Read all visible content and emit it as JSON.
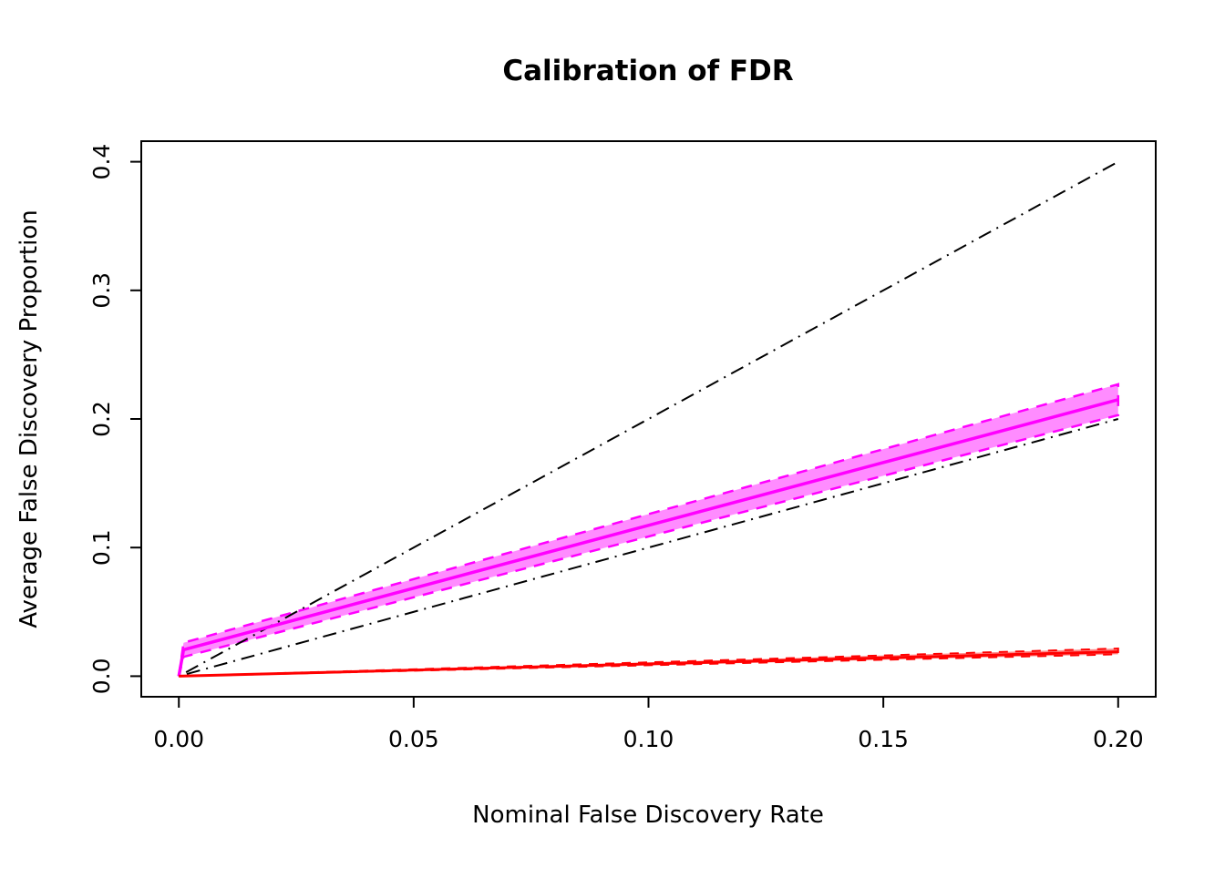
{
  "chart_data": {
    "type": "line",
    "title": "Calibration of FDR",
    "xlabel": "Nominal False Discovery Rate",
    "ylabel": "Average False Discovery Proportion",
    "xlim": [
      0,
      0.2
    ],
    "ylim": [
      0,
      0.4
    ],
    "grid": false,
    "legend": "none",
    "x_ticks": [
      {
        "value": 0.0,
        "label": "0.00"
      },
      {
        "value": 0.05,
        "label": "0.05"
      },
      {
        "value": 0.1,
        "label": "0.10"
      },
      {
        "value": 0.15,
        "label": "0.15"
      },
      {
        "value": 0.2,
        "label": "0.20"
      }
    ],
    "y_ticks": [
      {
        "value": 0.0,
        "label": "0.0"
      },
      {
        "value": 0.1,
        "label": "0.1"
      },
      {
        "value": 0.2,
        "label": "0.2"
      },
      {
        "value": 0.3,
        "label": "0.3"
      },
      {
        "value": 0.4,
        "label": "0.4"
      }
    ],
    "bands": [
      {
        "name": "magenta-confidence-band",
        "color": "#FF00FF",
        "fill_opacity": 0.45,
        "stroke_dash": "12 9",
        "stroke_width": 2.5,
        "x": [
          0,
          0.001,
          0.05,
          0.1,
          0.15,
          0.2
        ],
        "upper": [
          0,
          0.026,
          0.0755,
          0.126,
          0.1765,
          0.227
        ],
        "lower": [
          0,
          0.015,
          0.0613,
          0.1086,
          0.1558,
          0.203
        ]
      },
      {
        "name": "red-confidence-band",
        "color": "#FF0000",
        "fill_opacity": 0.45,
        "stroke_dash": "10 8",
        "stroke_width": 2,
        "x": [
          0,
          0.2
        ],
        "upper": [
          0,
          0.0215
        ],
        "lower": [
          0,
          0.017
        ]
      }
    ],
    "series": [
      {
        "name": "reference-line-2x",
        "color": "#000000",
        "width": 2,
        "dash": "2 7 15 7",
        "x": [
          0,
          0.2
        ],
        "y": [
          0,
          0.4
        ]
      },
      {
        "name": "reference-line-identity",
        "color": "#000000",
        "width": 2,
        "dash": "2 7 15 7",
        "x": [
          0,
          0.2
        ],
        "y": [
          0,
          0.2
        ]
      },
      {
        "name": "magenta-mean-fdp",
        "color": "#FF00FF",
        "width": 3.5,
        "dash": "",
        "x": [
          0,
          0.001,
          0.05,
          0.1,
          0.15,
          0.2
        ],
        "y": [
          0,
          0.0205,
          0.0684,
          0.1173,
          0.1661,
          0.215
        ]
      },
      {
        "name": "red-mean-fdp",
        "color": "#FF0000",
        "width": 3,
        "dash": "",
        "x": [
          0,
          0.2
        ],
        "y": [
          0,
          0.019
        ]
      }
    ]
  }
}
